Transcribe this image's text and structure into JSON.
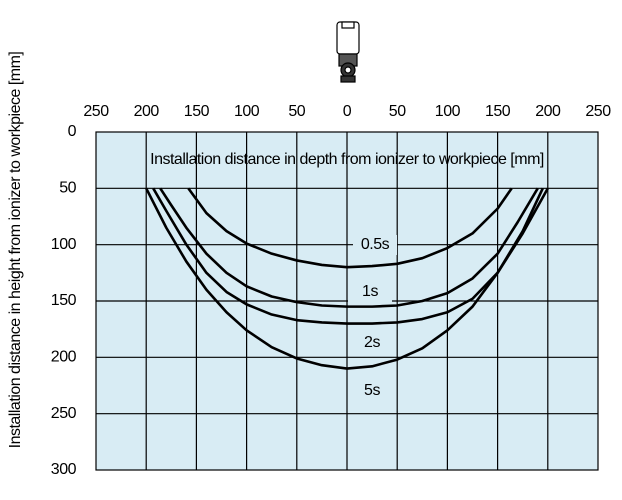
{
  "chart_data": {
    "type": "line",
    "x_label": "Installation distance in depth from ionizer to workpiece [mm]",
    "y_label": "Installation distance in height from ionizer to workpiece [mm]",
    "xlim": [
      -250,
      250
    ],
    "xticks": [
      {
        "value": -250,
        "label": "250"
      },
      {
        "value": -200,
        "label": "200"
      },
      {
        "value": -150,
        "label": "150"
      },
      {
        "value": -100,
        "label": "100"
      },
      {
        "value": -50,
        "label": "50"
      },
      0,
      50,
      100,
      150,
      200,
      250
    ],
    "ylim": [
      0,
      300
    ],
    "yticks": [
      0,
      50,
      100,
      150,
      200,
      250,
      300
    ],
    "y_inverted": true,
    "grid": true,
    "series": [
      {
        "name": "0.5s",
        "color": "#000000",
        "x": [
          -158,
          -140,
          -120,
          -100,
          -75,
          -50,
          -25,
          0,
          25,
          50,
          75,
          100,
          125,
          150,
          164
        ],
        "values": [
          50,
          72,
          88,
          99,
          108,
          114,
          118,
          120,
          119,
          117,
          112,
          103,
          90,
          68,
          50
        ]
      },
      {
        "name": "1s",
        "color": "#000000",
        "x": [
          -186,
          -175,
          -160,
          -140,
          -120,
          -100,
          -75,
          -50,
          -25,
          0,
          25,
          50,
          75,
          100,
          125,
          150,
          170,
          190
        ],
        "values": [
          50,
          65,
          85,
          108,
          125,
          137,
          146,
          151,
          154,
          155,
          155,
          154,
          150,
          143,
          130,
          108,
          80,
          50
        ]
      },
      {
        "name": "2s",
        "color": "#000000",
        "x": [
          -193,
          -180,
          -160,
          -140,
          -120,
          -100,
          -75,
          -50,
          -25,
          0,
          25,
          50,
          75,
          100,
          125,
          150,
          175,
          195
        ],
        "values": [
          50,
          70,
          100,
          125,
          142,
          153,
          162,
          167,
          169,
          170,
          170,
          169,
          166,
          160,
          148,
          125,
          88,
          50
        ]
      },
      {
        "name": "5s",
        "color": "#000000",
        "x": [
          -200,
          -180,
          -160,
          -140,
          -120,
          -100,
          -75,
          -50,
          -25,
          0,
          25,
          50,
          75,
          100,
          125,
          150,
          175,
          200
        ],
        "values": [
          50,
          85,
          115,
          140,
          160,
          176,
          191,
          201,
          207,
          210,
          208,
          202,
          192,
          176,
          155,
          125,
          90,
          50
        ]
      }
    ]
  }
}
